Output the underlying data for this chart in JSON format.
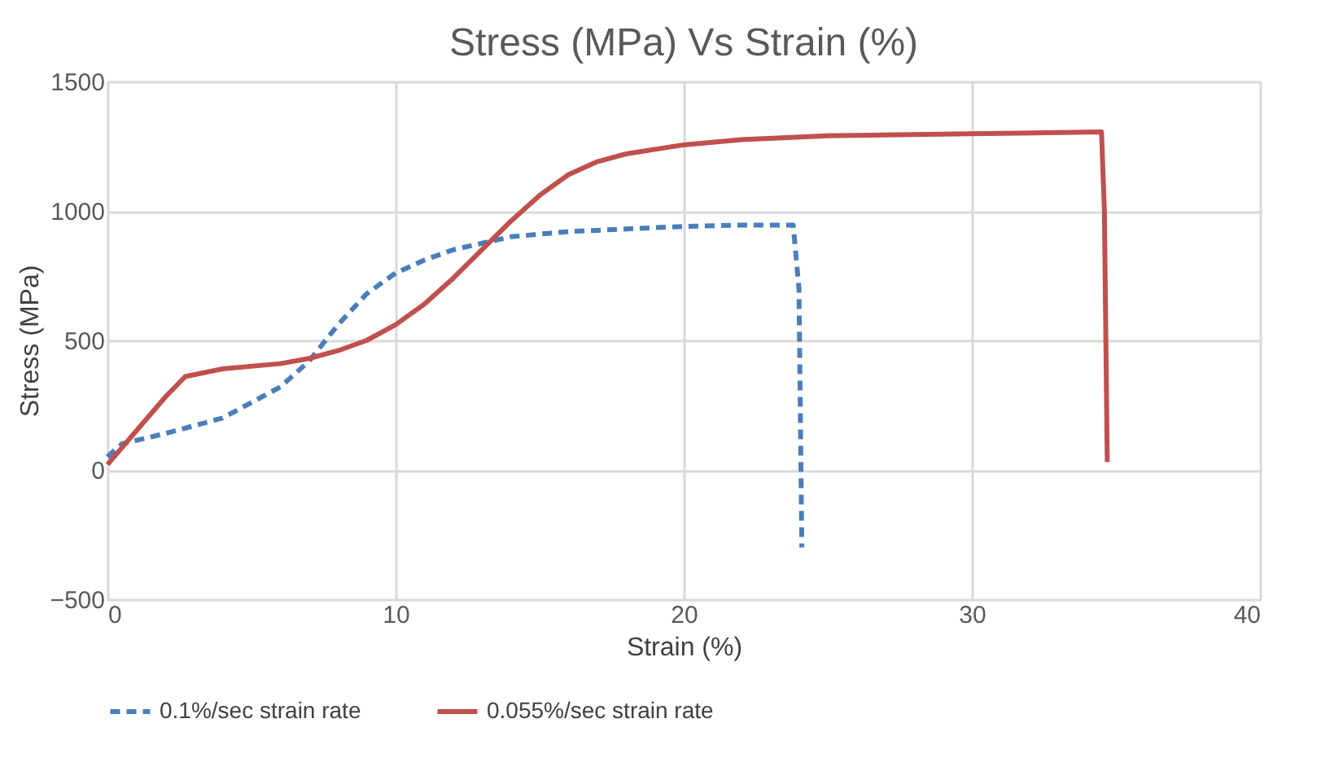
{
  "chart_data": {
    "type": "line",
    "title": "Stress (MPa) Vs Strain (%)",
    "xlabel": "Strain (%)",
    "ylabel": "Stress (MPa)",
    "xlim": [
      0,
      40
    ],
    "xticks": [
      0,
      10,
      20,
      30,
      40
    ],
    "ylim": [
      -500,
      1500
    ],
    "yticks": [
      -500,
      0,
      500,
      1000,
      1500
    ],
    "grid": true,
    "legend": "bottom",
    "marker": "none",
    "series": [
      {
        "name": "0.1%/sec strain rate",
        "color": "#4a7ebb",
        "line_style": "dashed",
        "x": [
          0,
          0.5,
          2,
          4,
          6,
          7,
          8,
          9,
          10,
          11,
          12,
          13,
          14,
          16,
          18,
          20,
          22,
          23.8,
          24,
          24.1
        ],
        "values": [
          50,
          100,
          140,
          200,
          320,
          420,
          560,
          680,
          760,
          810,
          850,
          875,
          900,
          920,
          930,
          940,
          945,
          945,
          700,
          -300
        ]
      },
      {
        "name": "0.055%/sec strain rate",
        "color": "#c0504d",
        "line_style": "solid",
        "x": [
          0,
          1,
          2,
          2.7,
          4,
          6,
          7,
          8,
          9,
          10,
          11,
          12,
          13,
          14,
          15,
          16,
          17,
          18,
          20,
          22,
          25,
          30,
          34.5,
          34.6,
          34.7
        ],
        "values": [
          20,
          150,
          280,
          360,
          390,
          410,
          430,
          460,
          500,
          560,
          640,
          740,
          850,
          960,
          1060,
          1140,
          1190,
          1220,
          1255,
          1275,
          1290,
          1298,
          1305,
          1000,
          30
        ]
      }
    ]
  }
}
